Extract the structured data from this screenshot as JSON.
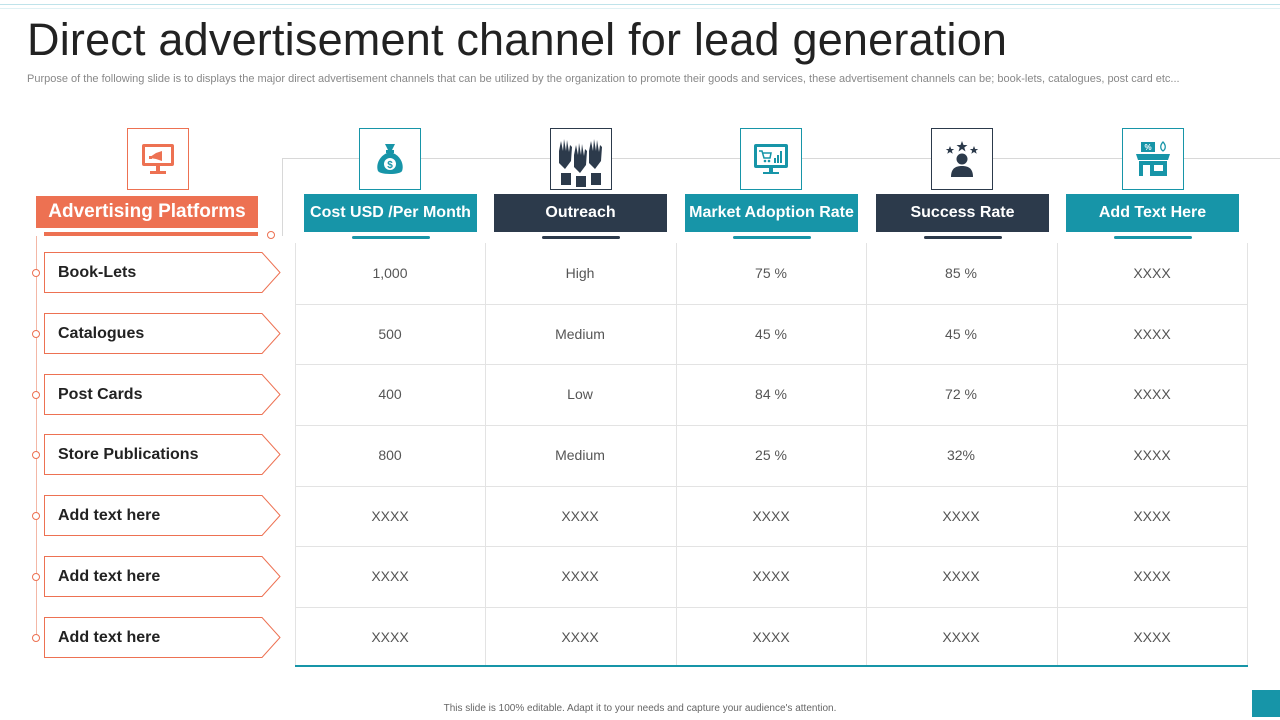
{
  "title": "Direct advertisement channel for lead generation",
  "subtitle": "Purpose of the following slide is to displays the major direct advertisement channels that can be utilized by the organization to promote their goods and services, these advertisement channels can be; book-lets, catalogues, post card etc...",
  "row_header": "Advertising Platforms",
  "columns": [
    {
      "label": "Cost  USD /Per Month",
      "style": "teal",
      "icon": "money-bag-icon"
    },
    {
      "label": "Outreach",
      "style": "dark",
      "icon": "raised-hands-icon"
    },
    {
      "label": "Market Adoption Rate",
      "style": "teal",
      "icon": "monitor-chart-icon"
    },
    {
      "label": "Success Rate",
      "style": "dark",
      "icon": "person-stars-icon"
    },
    {
      "label": "Add  Text Here",
      "style": "teal",
      "icon": "store-discount-icon"
    }
  ],
  "rows": [
    {
      "label": "Book-Lets",
      "cells": [
        "1,000",
        "High",
        "75 %",
        "85 %",
        "XXXX"
      ]
    },
    {
      "label": "Catalogues",
      "cells": [
        "500",
        "Medium",
        "45 %",
        "45 %",
        "XXXX"
      ]
    },
    {
      "label": "Post Cards",
      "cells": [
        "400",
        "Low",
        "84 %",
        "72 %",
        "XXXX"
      ]
    },
    {
      "label": "Store Publications",
      "cells": [
        "800",
        "Medium",
        "25 %",
        "32%",
        "XXXX"
      ]
    },
    {
      "label": "Add text here",
      "cells": [
        "XXXX",
        "XXXX",
        "XXXX",
        "XXXX",
        "XXXX"
      ]
    },
    {
      "label": "Add text here",
      "cells": [
        "XXXX",
        "XXXX",
        "XXXX",
        "XXXX",
        "XXXX"
      ]
    },
    {
      "label": "Add text here",
      "cells": [
        "XXXX",
        "XXXX",
        "XXXX",
        "XXXX",
        "XXXX"
      ]
    }
  ],
  "footer": "This slide is 100% editable.  Adapt it to your needs and capture your audience's attention.",
  "colors": {
    "orange": "#ed7152",
    "teal": "#1795a8",
    "dark": "#2c3a4b"
  }
}
